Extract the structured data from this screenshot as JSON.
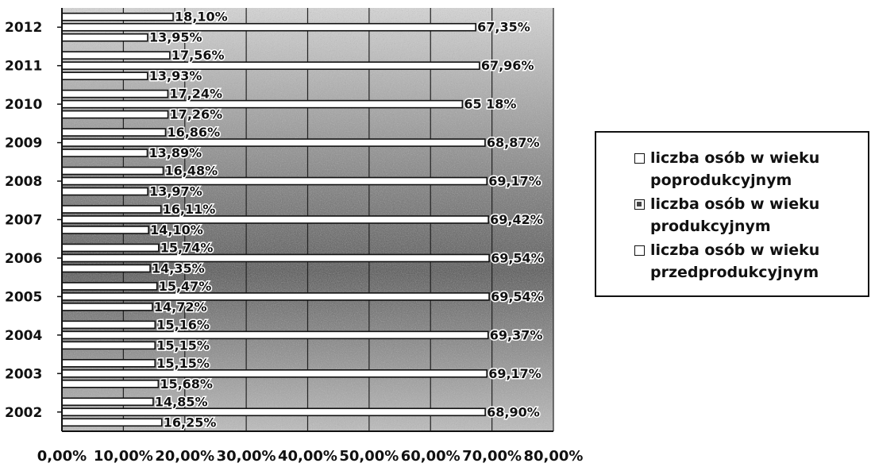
{
  "chart_data": {
    "type": "bar",
    "orientation": "horizontal",
    "categories": [
      "2002",
      "2003",
      "2004",
      "2005",
      "2006",
      "2007",
      "2008",
      "2009",
      "2010",
      "2011",
      "2012"
    ],
    "series": [
      {
        "name": "liczba osób w wieku poprodukcyjnym",
        "values": [
          14.85,
          15.15,
          15.16,
          15.47,
          15.74,
          16.11,
          16.48,
          16.86,
          17.24,
          17.56,
          18.1
        ],
        "labels": [
          "14,85%",
          "15,15%",
          "15,16%",
          "15,47%",
          "15,74%",
          "16,11%",
          "16,48%",
          "16,86%",
          "17,24%",
          "17,56%",
          "18,10%"
        ]
      },
      {
        "name": "liczba osób w wieku produkcyjnym",
        "values": [
          68.9,
          69.17,
          69.37,
          69.54,
          69.54,
          69.42,
          69.17,
          68.87,
          65.18,
          67.96,
          67.35
        ],
        "labels": [
          "68,90%",
          "69,17%",
          "69,37%",
          "69,54%",
          "69,54%",
          "69,42%",
          "69,17%",
          "68,87%",
          "65 18%",
          "67,96%",
          "67,35%"
        ]
      },
      {
        "name": "liczba osób w wieku przedprodukcyjnym",
        "values": [
          16.25,
          15.68,
          15.15,
          14.72,
          14.35,
          14.1,
          13.97,
          13.89,
          17.26,
          13.93,
          13.95
        ],
        "labels": [
          "16,25%",
          "15,68%",
          "15,15%",
          "14,72%",
          "14,35%",
          "14,10%",
          "13,97%",
          "13,89%",
          "17,26%",
          "13,93%",
          "13,95%"
        ]
      }
    ],
    "x_ticks": [
      "0,00%",
      "10,00%",
      "20,00%",
      "30,00%",
      "40,00%",
      "50,00%",
      "60,00%",
      "70,00%",
      "80,00%"
    ],
    "xlim": [
      0,
      80
    ],
    "grid": true,
    "legend_position": "right",
    "colors": {
      "bar_fill": "#ffffff",
      "bar_stroke": "#111111",
      "plot_texture": "#9a9a9a"
    }
  },
  "legend": {
    "items": [
      {
        "line1": "liczba osób w wieku",
        "line2": "poprodukcyjnym",
        "swatch": "open"
      },
      {
        "line1": "liczba osób w wieku",
        "line2": "produkcyjnym",
        "swatch": "filled"
      },
      {
        "line1": "liczba osób w wieku",
        "line2": "przedprodukcyjnym",
        "swatch": "open"
      }
    ]
  }
}
